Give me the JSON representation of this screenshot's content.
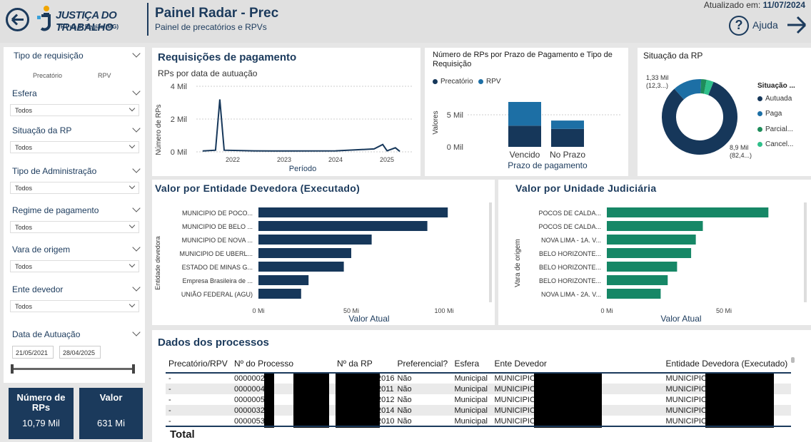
{
  "header": {
    "logo_line1": "JUSTIÇA DO TRABALHO",
    "logo_line2": "TRT da 3ª Região (MG)",
    "title": "Painel Radar - Prec",
    "subtitle": "Painel de precatórios e RPVs",
    "updated_label": "Atualizado em:",
    "updated_date": "11/07/2024",
    "help": "Ajuda"
  },
  "filters": {
    "tipo": "Tipo de requisição",
    "tipo_opts": [
      "Precatório",
      "RPV"
    ],
    "esfera": "Esfera",
    "situacao": "Situação da RP",
    "adm": "Tipo de Administração",
    "regime": "Regime de pagamento",
    "vara": "Vara de origem",
    "ente": "Ente devedor",
    "todos": "Todos",
    "data": "Data de Autuação",
    "date_from": "21/05/2021",
    "date_to": "28/04/2025"
  },
  "kpis": {
    "n_label": "Número de RPs",
    "n_value": "10,79 Mil",
    "v_label": "Valor",
    "v_value": "631 Mi"
  },
  "req": {
    "title": "Requisições de pagamento",
    "subtitle": "RPs por data de autuação",
    "ylabel": "Número de RPs",
    "xlabel": "Período",
    "yticks": [
      "4 Mil",
      "2 Mil",
      "0 Mil"
    ],
    "xticks": [
      "2022",
      "2023",
      "2024",
      "2025"
    ]
  },
  "prazo": {
    "title": "Número de RPs por Prazo de Pagamento e Tipo de Requisição",
    "legend": [
      "Precatório",
      "RPV"
    ],
    "ylabel": "Valores",
    "xlabel": "Prazo de pagamento",
    "yticks": [
      "5 Mil",
      "0 Mil"
    ]
  },
  "situ": {
    "title": "Situação da RP",
    "legend_title": "Situação ...",
    "legend": [
      "Autuada",
      "Paga",
      "Parcial...",
      "Cancel..."
    ],
    "label_a": "1,33 Mil",
    "label_a2": "(12,3...)",
    "label_b": "8,9 Mil",
    "label_b2": "(82,4...)"
  },
  "ent": {
    "title": "Valor por Entidade Devedora (Executado)",
    "ylabel": "Entidade devedora",
    "xlabel": "Valor Atual",
    "xticks": [
      "0 Mi",
      "50 Mi",
      "100 Mi"
    ]
  },
  "uni": {
    "title": "Valor por Unidade Judiciária",
    "ylabel": "Vara de origem",
    "xlabel": "Valor Atual",
    "xticks": [
      "0 Mi",
      "50 Mi"
    ]
  },
  "table": {
    "title": "Dados dos processos",
    "cols": [
      "Precatório/RPV",
      "Nº do Processo",
      "Nº da RP",
      "Preferencial?",
      "Esfera",
      "Ente Devedor",
      "Entidade Devedora (Executado)"
    ],
    "rows": [
      [
        "-",
        "0000002",
        "2016",
        "Não",
        "Municipal",
        "MUNICIPIO DE",
        "MUNICIPIO DE"
      ],
      [
        "-",
        "0000004",
        "2011",
        "Não",
        "Municipal",
        "MUNICIPIO DE",
        "MUNICIPIO DE"
      ],
      [
        "-",
        "0000005",
        "2012",
        "Não",
        "Municipal",
        "MUNICIPIO DE",
        "MUNICIPIO DE"
      ],
      [
        "-",
        "0000032",
        "2014",
        "Não",
        "Municipal",
        "MUNICIPIO DE",
        "MUNICIPIO DE"
      ],
      [
        "-",
        "0000053",
        "2010",
        "Não",
        "Municipal",
        "MUNICIPIO DE",
        "MUNICIPIO DE"
      ]
    ],
    "total": "Total"
  },
  "chart_data": [
    {
      "type": "line",
      "title": "Requisições de pagamento",
      "xlabel": "Período",
      "ylabel": "Número de RPs",
      "ylim": [
        0,
        4000
      ],
      "x": [
        "2021-06",
        "2021-09",
        "2021-10",
        "2021-11",
        "2022-06",
        "2023-01",
        "2024-01",
        "2024-10",
        "2024-12",
        "2025-01",
        "2025-03",
        "2025-04"
      ],
      "values": [
        50,
        100,
        3200,
        100,
        60,
        50,
        60,
        180,
        450,
        60,
        250,
        30
      ]
    },
    {
      "type": "bar",
      "title": "Número de RPs por Prazo de Pagamento e Tipo de Requisição",
      "categories": [
        "Vencido",
        "No Prazo"
      ],
      "series": [
        {
          "name": "Precatório",
          "values": [
            3300,
            2800
          ]
        },
        {
          "name": "RPV",
          "values": [
            3700,
            1300
          ]
        }
      ],
      "ylabel": "Valores",
      "xlabel": "Prazo de pagamento"
    },
    {
      "type": "pie",
      "title": "Situação da RP",
      "categories": [
        "Autuada",
        "Paga",
        "Parcial...",
        "Cancel..."
      ],
      "values": [
        8900,
        1330,
        250,
        330
      ],
      "colors": [
        "#16375a",
        "#1d6fa5",
        "#1e8c5a",
        "#2fbf8a"
      ]
    },
    {
      "type": "bar",
      "title": "Valor por Entidade Devedora (Executado)",
      "categories": [
        "MUNICIPIO DE POCO...",
        "MUNICIPIO DE BELO ...",
        "MUNICIPIO DE NOVA ...",
        "MUNICIPIO DE UBERL...",
        "ESTADO DE MINAS G...",
        "Empresa Brasileira de ...",
        "UNIÃO FEDERAL (AGU)"
      ],
      "values": [
        102,
        91,
        61,
        50,
        46,
        27,
        23
      ],
      "xlabel": "Valor Atual",
      "ylabel": "Entidade devedora",
      "xlim": [
        0,
        110
      ]
    },
    {
      "type": "bar",
      "title": "Valor por Unidade Judiciária",
      "categories": [
        "POCOS DE CALDA...",
        "POCOS DE CALDA...",
        "NOVA LIMA - 1A. V...",
        "BELO HORIZONTE...",
        "BELO HORIZONTE...",
        "BELO HORIZONTE...",
        "NOVA LIMA - 2A. V..."
      ],
      "values": [
        69,
        41,
        38,
        36,
        30,
        26,
        23
      ],
      "xlabel": "Valor Atual",
      "ylabel": "Vara de origem",
      "xlim": [
        0,
        75
      ]
    }
  ]
}
